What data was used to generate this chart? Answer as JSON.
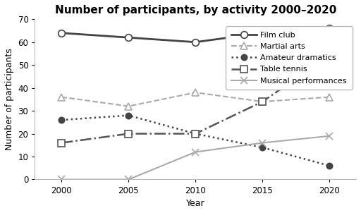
{
  "title": "Number of participants, by activity 2000–2020",
  "xlabel": "Year",
  "ylabel": "Number of participants",
  "years": [
    2000,
    2005,
    2010,
    2015,
    2020
  ],
  "series": [
    {
      "name": "Film club",
      "values": [
        64,
        62,
        60,
        64,
        66
      ],
      "color": "#444444",
      "linestyle": "-",
      "marker": "o",
      "markerfacecolor": "white",
      "markeredgecolor": "#444444",
      "linewidth": 2.0,
      "markersize": 7
    },
    {
      "name": "Martial arts",
      "values": [
        36,
        32,
        38,
        34,
        36
      ],
      "color": "#aaaaaa",
      "linestyle": "--",
      "marker": "^",
      "markerfacecolor": "white",
      "markeredgecolor": "#aaaaaa",
      "linewidth": 1.5,
      "markersize": 7
    },
    {
      "name": "Amateur dramatics",
      "values": [
        26,
        28,
        20,
        14,
        6
      ],
      "color": "#444444",
      "linestyle": ":",
      "marker": "o",
      "markerfacecolor": "#444444",
      "markeredgecolor": "#444444",
      "linewidth": 1.8,
      "markersize": 6
    },
    {
      "name": "Table tennis",
      "values": [
        16,
        20,
        20,
        34,
        54
      ],
      "color": "#555555",
      "linestyle": "-.",
      "marker": "s",
      "markerfacecolor": "white",
      "markeredgecolor": "#555555",
      "linewidth": 1.8,
      "markersize": 7
    },
    {
      "name": "Musical performances",
      "values": [
        0,
        0,
        12,
        16,
        19
      ],
      "color": "#aaaaaa",
      "linestyle": "-",
      "marker": "x",
      "markerfacecolor": "#aaaaaa",
      "markeredgecolor": "#aaaaaa",
      "linewidth": 1.5,
      "markersize": 7
    }
  ],
  "ylim": [
    0,
    70
  ],
  "yticks": [
    0,
    10,
    20,
    30,
    40,
    50,
    60,
    70
  ],
  "xlim": [
    1998,
    2022
  ],
  "background_color": "#ffffff",
  "title_fontsize": 11,
  "axis_label_fontsize": 9,
  "tick_fontsize": 8.5,
  "legend_fontsize": 8
}
